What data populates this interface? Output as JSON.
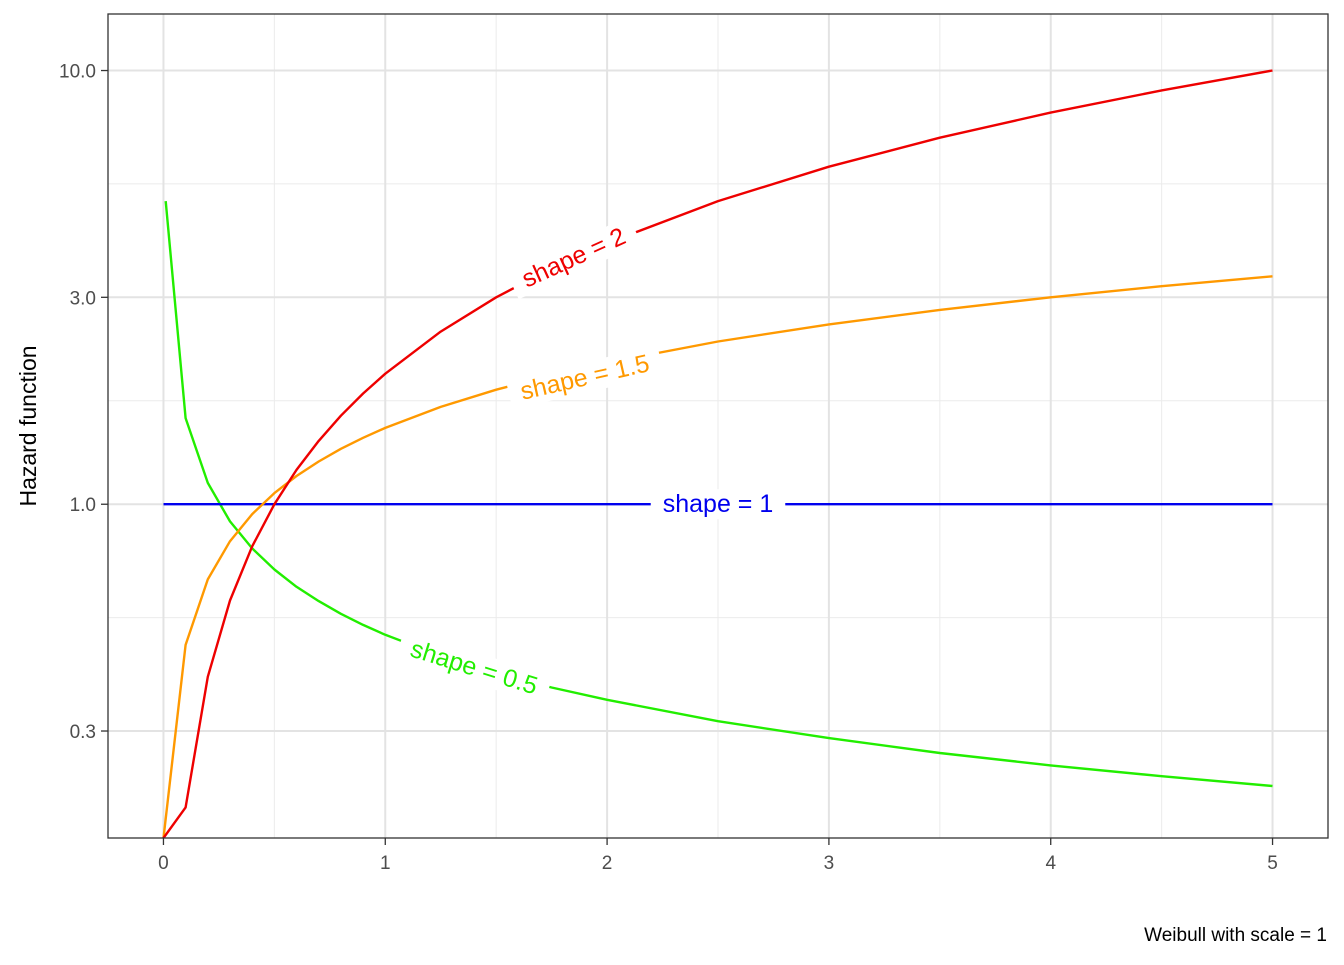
{
  "chart_data": {
    "type": "line",
    "title": "",
    "xlabel": "",
    "ylabel": "Hazard function",
    "caption": "Weibull with scale = 1",
    "x_scale": "linear",
    "y_scale": "log",
    "xlim": [
      -0.25,
      5.25
    ],
    "ylim": [
      0.17,
      13.5
    ],
    "x_ticks": [
      0,
      1,
      2,
      3,
      4,
      5
    ],
    "x_tick_labels": [
      "0",
      "1",
      "2",
      "3",
      "4",
      "5"
    ],
    "y_ticks": [
      0.3,
      1.0,
      3.0,
      10.0
    ],
    "y_tick_labels": [
      "0.3",
      "1.0",
      "3.0",
      "10.0"
    ],
    "grid": true,
    "legend": "none",
    "series": [
      {
        "label": "shape = 0.5",
        "shape": 0.5,
        "color": "#22ee00",
        "label_at": [
          1.4,
          0.42
        ],
        "x": [
          0.01,
          0.1,
          0.2,
          0.3,
          0.4,
          0.5,
          0.6,
          0.7,
          0.8,
          0.9,
          1.0,
          1.25,
          1.5,
          1.75,
          2.0,
          2.5,
          3.0,
          3.5,
          4.0,
          4.5,
          5.0
        ],
        "y": [
          5.0,
          1.58,
          1.12,
          0.913,
          0.791,
          0.707,
          0.645,
          0.598,
          0.559,
          0.527,
          0.5,
          0.447,
          0.408,
          0.378,
          0.354,
          0.316,
          0.289,
          0.267,
          0.25,
          0.236,
          0.224
        ]
      },
      {
        "label": "shape = 1",
        "shape": 1,
        "color": "#0000ee",
        "label_at": [
          2.5,
          1.0
        ],
        "x": [
          0,
          1,
          2,
          3,
          4,
          5
        ],
        "y": [
          1,
          1,
          1,
          1,
          1,
          1
        ]
      },
      {
        "label": "shape = 1.5",
        "shape": 1.5,
        "color": "#ff9900",
        "label_at": [
          1.9,
          1.96
        ],
        "x": [
          0,
          0.1,
          0.2,
          0.3,
          0.4,
          0.5,
          0.6,
          0.7,
          0.8,
          0.9,
          1.0,
          1.25,
          1.5,
          1.75,
          2.0,
          2.5,
          3.0,
          3.5,
          4.0,
          4.5,
          5.0
        ],
        "y": [
          0.17,
          0.474,
          0.671,
          0.822,
          0.949,
          1.061,
          1.162,
          1.255,
          1.342,
          1.423,
          1.5,
          1.677,
          1.837,
          1.984,
          2.121,
          2.372,
          2.598,
          2.806,
          3.0,
          3.182,
          3.354
        ]
      },
      {
        "label": "shape = 2",
        "shape": 2,
        "color": "#ee0000",
        "label_at": [
          1.85,
          3.7
        ],
        "x": [
          0,
          0.1,
          0.2,
          0.3,
          0.4,
          0.5,
          0.6,
          0.7,
          0.8,
          0.9,
          1.0,
          1.25,
          1.5,
          1.75,
          2.0,
          2.5,
          3.0,
          3.5,
          4.0,
          4.5,
          5.0
        ],
        "y": [
          0.17,
          0.2,
          0.4,
          0.6,
          0.8,
          1.0,
          1.2,
          1.4,
          1.6,
          1.8,
          2.0,
          2.5,
          3.0,
          3.5,
          4.0,
          5.0,
          6.0,
          7.0,
          8.0,
          9.0,
          10.0
        ]
      }
    ]
  }
}
